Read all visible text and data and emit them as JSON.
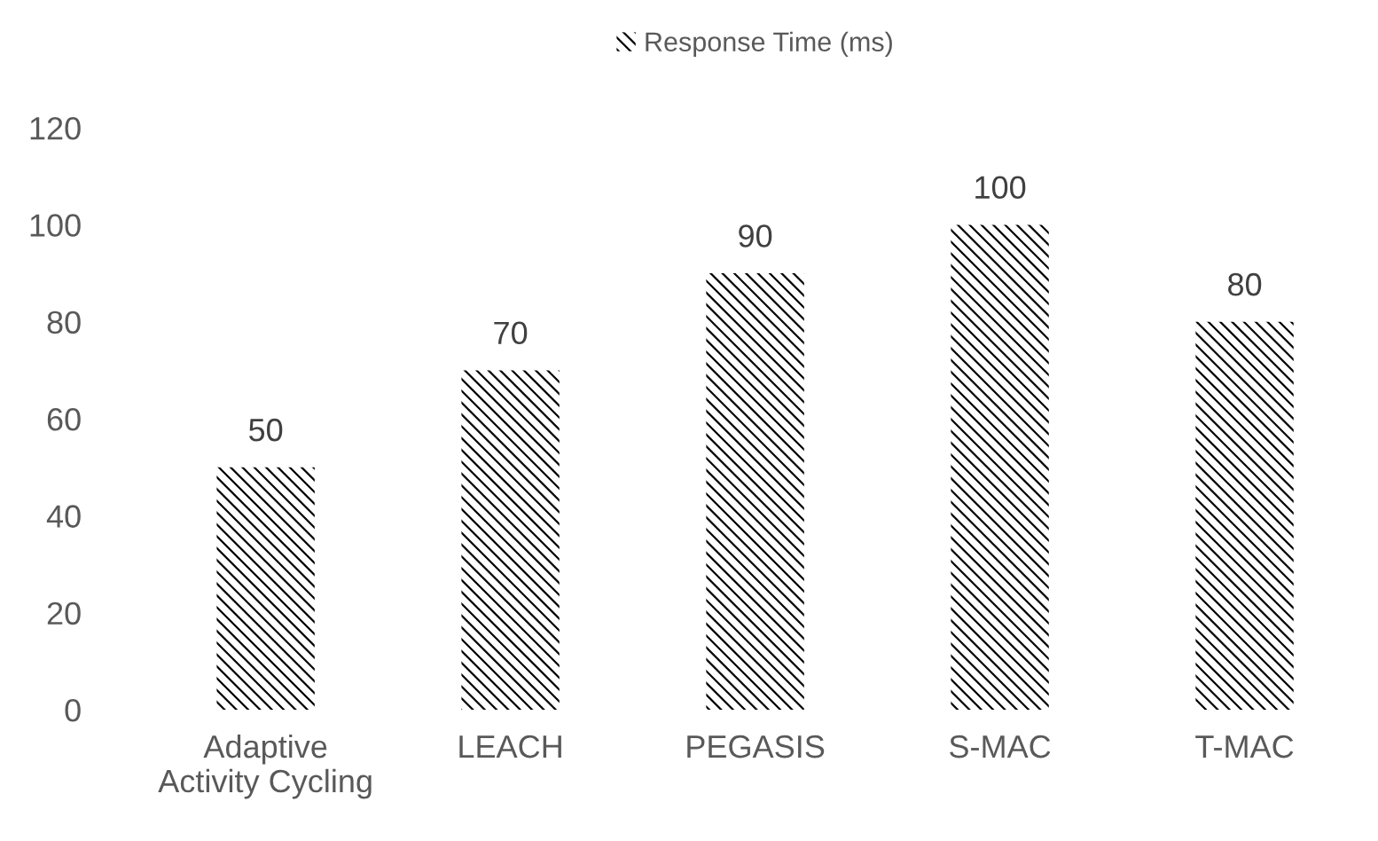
{
  "chart_data": {
    "type": "bar",
    "categories": [
      "Adaptive Activity Cycling",
      "LEACH",
      "PEGASIS",
      "S-MAC",
      "T-MAC"
    ],
    "series": [
      {
        "name": "Response Time (ms)",
        "color": "#000000",
        "values": [
          50,
          70,
          90,
          100,
          80
        ]
      }
    ],
    "ylim": [
      0,
      120
    ],
    "yticks": [
      0,
      20,
      40,
      60,
      80,
      100,
      120
    ],
    "data_labels": true,
    "legend": "top",
    "grid": false
  }
}
